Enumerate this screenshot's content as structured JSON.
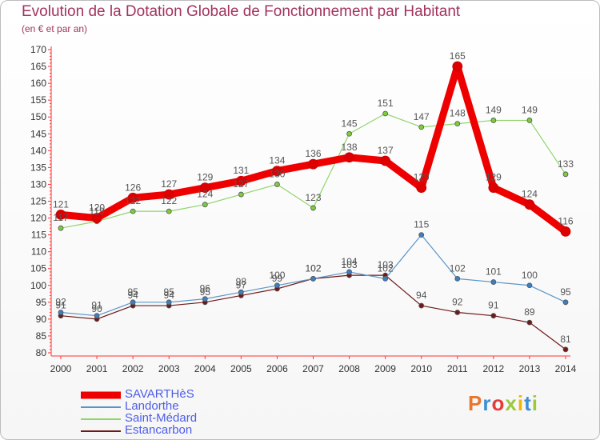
{
  "header": {
    "title": "Evolution de la Dotation Globale de Fonctionnement par Habitant",
    "subtitle": "(en € et par an)"
  },
  "logo": {
    "text": "Proxiti",
    "colors": [
      "#e9762d",
      "#3d8fd4",
      "#e43b3b",
      "#9bc93d",
      "#f2b600",
      "#3d8fd4",
      "#9bc93d"
    ]
  },
  "chart_data": {
    "type": "line",
    "title": "Evolution de la Dotation Globale de Fonctionnement par Habitant",
    "subtitle": "(en € et par an)",
    "xlabel": "",
    "ylabel": "",
    "x": [
      "2000",
      "2001",
      "2002",
      "2003",
      "2004",
      "2005",
      "2006",
      "2007",
      "2008",
      "2009",
      "2010",
      "2011",
      "2012",
      "2013",
      "2014"
    ],
    "ylim": [
      80,
      170
    ],
    "yticks": [
      80,
      85,
      90,
      95,
      100,
      105,
      110,
      115,
      120,
      125,
      130,
      135,
      140,
      145,
      150,
      155,
      160,
      165,
      170
    ],
    "grid": false,
    "legend_position": "bottom-left",
    "series": [
      {
        "name": "Estancarbon",
        "color": "#6e1a1a",
        "marker": "#6e1a1a",
        "width": 1.2,
        "values": [
          91,
          90,
          94,
          94,
          95,
          97,
          99,
          102,
          103,
          103,
          94,
          92,
          91,
          89,
          81
        ]
      },
      {
        "name": "Landorthe",
        "color": "#5b95c7",
        "marker": "#3d7fc0",
        "width": 1.2,
        "values": [
          92,
          91,
          95,
          95,
          96,
          98,
          100,
          102,
          104,
          102,
          115,
          102,
          101,
          100,
          95
        ]
      },
      {
        "name": "Saint-Médard",
        "color": "#90d46a",
        "marker": "#7ccc3d",
        "width": 1.2,
        "values": [
          117,
          119,
          122,
          122,
          124,
          127,
          130,
          123,
          145,
          151,
          147,
          148,
          149,
          149,
          133
        ]
      },
      {
        "name": "SAVARTHèS",
        "color": "#ee0000",
        "marker": "#dd0000",
        "width": 9,
        "values": [
          121,
          120,
          126,
          127,
          129,
          131,
          134,
          136,
          138,
          137,
          129,
          165,
          129,
          124,
          116
        ]
      }
    ]
  }
}
